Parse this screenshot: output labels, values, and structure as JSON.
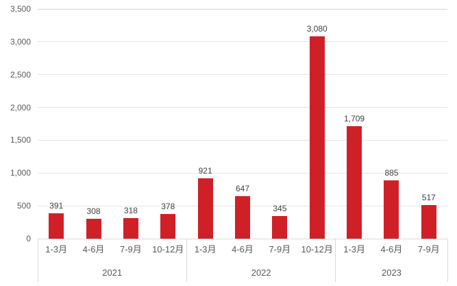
{
  "chart_data": {
    "type": "bar",
    "title": "",
    "legend": "none",
    "grid": true,
    "bar_color": "#d02027",
    "value_label_color": "#404040",
    "axis_label_color": "#595959",
    "gridline_color": "#e3e6e4",
    "top_gridline_color": "#d6d6d6",
    "axis_line_color": "#d9d9d9",
    "ylim": [
      0,
      3500
    ],
    "ytick_step": 500,
    "ytick_labels": [
      "0",
      "500",
      "1,000",
      "1,500",
      "2,000",
      "2,500",
      "3,000",
      "3,500"
    ],
    "groups": [
      {
        "year": "2021",
        "quarters": [
          "1-3月",
          "4-6月",
          "7-9月",
          "10-12月"
        ],
        "values": [
          391,
          308,
          318,
          378
        ],
        "value_labels": [
          "391",
          "308",
          "318",
          "378"
        ]
      },
      {
        "year": "2022",
        "quarters": [
          "1-3月",
          "4-6月",
          "7-9月",
          "10-12月"
        ],
        "values": [
          921,
          647,
          345,
          3080
        ],
        "value_labels": [
          "921",
          "647",
          "345",
          "3,080"
        ]
      },
      {
        "year": "2023",
        "quarters": [
          "1-3月",
          "4-6月",
          "7-9月"
        ],
        "values": [
          1709,
          885,
          517
        ],
        "value_labels": [
          "1,709",
          "885",
          "517"
        ]
      }
    ]
  }
}
